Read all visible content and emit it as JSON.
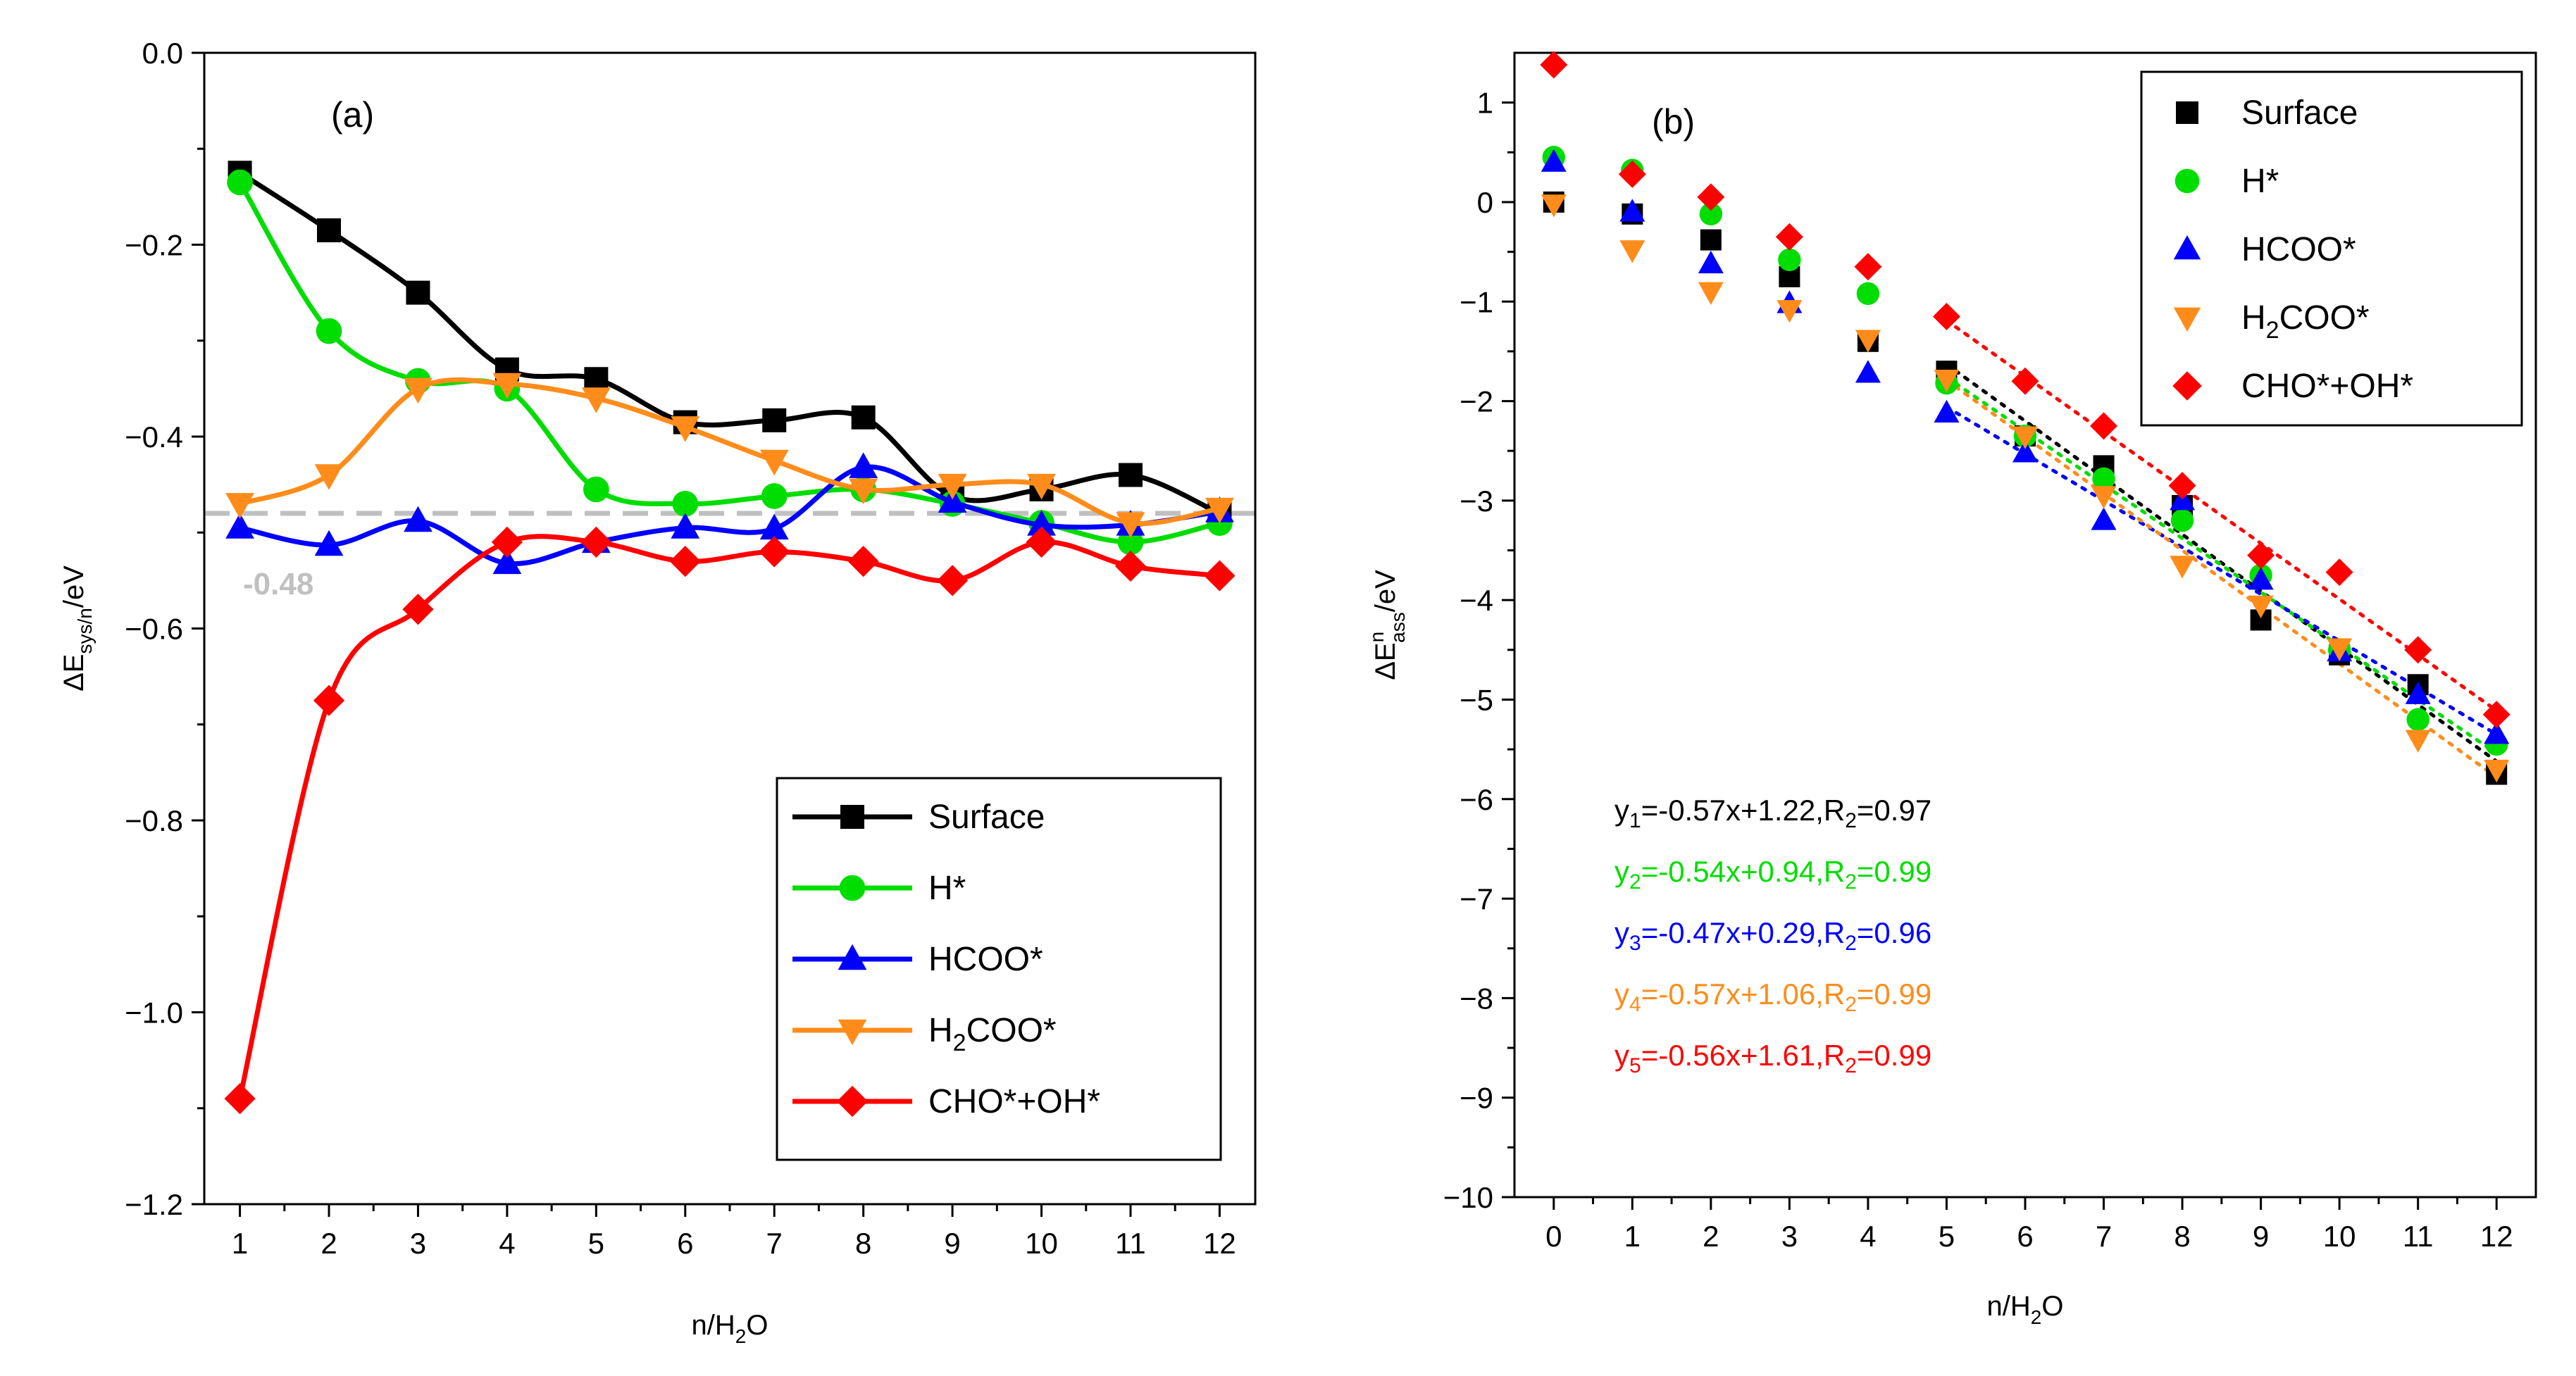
{
  "colors": {
    "surface": "#000000",
    "h": "#00dd00",
    "hcoo": "#0000ff",
    "h2coo": "#ff8c1a",
    "choh": "#ff0000",
    "refline": "#c0c0c0",
    "axis": "#000000"
  },
  "chart_data": [
    {
      "panel": "(a)",
      "type": "line",
      "xlabel": {
        "base": "n/H",
        "sub": "2",
        "tail": "O"
      },
      "ylabel": {
        "base": "ΔE",
        "sub": "sys/n",
        "tail": "/eV"
      },
      "xlim": [
        0.6,
        12.4
      ],
      "ylim": [
        -1.2,
        0.0
      ],
      "xticks": [
        1,
        2,
        3,
        4,
        5,
        6,
        7,
        8,
        9,
        10,
        11,
        12
      ],
      "yticks": [
        0.0,
        -0.2,
        -0.4,
        -0.6,
        -0.8,
        -1.0,
        -1.2
      ],
      "ytick_labels": [
        "0.0",
        "−0.2",
        "−0.4",
        "−0.6",
        "−0.8",
        "−1.0",
        "−1.2"
      ],
      "ref_line": {
        "y": -0.48,
        "label": "-0.48"
      },
      "legend_position": "bottom-right",
      "x": [
        1,
        2,
        3,
        4,
        5,
        6,
        7,
        8,
        9,
        10,
        11,
        12
      ],
      "series": [
        {
          "key": "surface",
          "name": "Surface",
          "marker": "square",
          "values": [
            -0.125,
            -0.185,
            -0.25,
            -0.33,
            -0.34,
            -0.385,
            -0.383,
            -0.38,
            -0.462,
            -0.455,
            -0.44,
            -0.48
          ]
        },
        {
          "key": "h",
          "name": "H*",
          "marker": "circle",
          "values": [
            -0.135,
            -0.29,
            -0.342,
            -0.35,
            -0.455,
            -0.47,
            -0.462,
            -0.455,
            -0.47,
            -0.49,
            -0.51,
            -0.49
          ]
        },
        {
          "key": "hcoo",
          "name": "HCOO*",
          "marker": "triangle-up",
          "values": [
            -0.495,
            -0.513,
            -0.488,
            -0.532,
            -0.51,
            -0.495,
            -0.496,
            -0.432,
            -0.468,
            -0.492,
            -0.492,
            -0.478
          ]
        },
        {
          "key": "h2coo",
          "name": "H2COO*",
          "label_base": "H",
          "label_sub": "2",
          "label_tail": "COO*",
          "marker": "triangle-down",
          "values": [
            -0.47,
            -0.44,
            -0.35,
            -0.345,
            -0.36,
            -0.39,
            -0.425,
            -0.455,
            -0.45,
            -0.45,
            -0.49,
            -0.475
          ]
        },
        {
          "key": "choh",
          "name": "CHO*+OH*",
          "marker": "diamond",
          "values": [
            -1.09,
            -0.675,
            -0.58,
            -0.51,
            -0.51,
            -0.53,
            -0.52,
            -0.53,
            -0.55,
            -0.51,
            -0.535,
            -0.545
          ]
        }
      ]
    },
    {
      "panel": "(b)",
      "type": "scatter",
      "xlabel": {
        "base": "n/H",
        "sub": "2",
        "tail": "O"
      },
      "ylabel": {
        "base": "ΔE",
        "sup": "n",
        "sub": "ass",
        "tail": "/eV"
      },
      "xlim": [
        -0.5,
        12.5
      ],
      "ylim": [
        -10,
        1.5
      ],
      "xticks": [
        0,
        1,
        2,
        3,
        4,
        5,
        6,
        7,
        8,
        9,
        10,
        11,
        12
      ],
      "yticks": [
        1,
        0,
        -1,
        -2,
        -3,
        -4,
        -5,
        -6,
        -7,
        -8,
        -9,
        -10
      ],
      "ytick_labels": [
        "1",
        "0",
        "−1",
        "−2",
        "−3",
        "−4",
        "−5",
        "−6",
        "−7",
        "−8",
        "−9",
        "−10"
      ],
      "legend_position": "top-right",
      "fit_range": [
        5,
        12
      ],
      "x": [
        0,
        1,
        2,
        3,
        4,
        5,
        6,
        7,
        8,
        9,
        10,
        11,
        12
      ],
      "series": [
        {
          "key": "surface",
          "name": "Surface",
          "marker": "square",
          "values": [
            0.0,
            -0.12,
            -0.38,
            -0.75,
            -1.4,
            -1.7,
            -2.35,
            -2.65,
            -3.05,
            -4.2,
            -4.55,
            -4.85,
            -5.75
          ],
          "fit": {
            "slope": -0.57,
            "intercept": 1.22,
            "label_pre": "y",
            "label_sub": "1",
            "label_mid": "=-0.57x+1.22,R",
            "label_sub2": "2",
            "label_end": "=0.97"
          }
        },
        {
          "key": "h",
          "name": "H*",
          "marker": "circle",
          "values": [
            0.45,
            0.32,
            -0.12,
            -0.58,
            -0.92,
            -1.82,
            -2.35,
            -2.78,
            -3.2,
            -3.75,
            -4.5,
            -5.2,
            -5.45
          ],
          "fit": {
            "slope": -0.54,
            "intercept": 0.94,
            "label_pre": "y",
            "label_sub": "2",
            "label_mid": "=-0.54x+0.94,R",
            "label_sub2": "2",
            "label_end": "=0.99"
          }
        },
        {
          "key": "hcoo",
          "name": "HCOO*",
          "marker": "triangle-up",
          "values": [
            0.4,
            -0.1,
            -0.62,
            -1.02,
            -1.72,
            -2.12,
            -2.52,
            -3.2,
            -3.0,
            -3.8,
            -4.52,
            -4.95,
            -5.35
          ],
          "fit": {
            "slope": -0.47,
            "intercept": 0.29,
            "label_pre": "y",
            "label_sub": "3",
            "label_mid": "=-0.47x+0.29,R",
            "label_sub2": "2",
            "label_end": "=0.96"
          }
        },
        {
          "key": "h2coo",
          "name": "H2COO*",
          "label_base": "H",
          "label_sub": "2",
          "label_tail": "COO*",
          "marker": "triangle-down",
          "values": [
            -0.02,
            -0.48,
            -0.9,
            -1.08,
            -1.38,
            -1.78,
            -2.35,
            -2.95,
            -3.65,
            -4.05,
            -4.48,
            -5.4,
            -5.7
          ],
          "fit": {
            "slope": -0.57,
            "intercept": 1.06,
            "label_pre": "y",
            "label_sub": "4",
            "label_mid": "=-0.57x+1.06,R",
            "label_sub2": "2",
            "label_end": "=0.99"
          }
        },
        {
          "key": "choh",
          "name": "CHO*+OH*",
          "marker": "diamond",
          "values": [
            1.38,
            0.28,
            0.05,
            -0.35,
            -0.65,
            -1.15,
            -1.8,
            -2.25,
            -2.85,
            -3.55,
            -3.72,
            -4.5,
            -5.15
          ],
          "fit": {
            "slope": -0.56,
            "intercept": 1.61,
            "label_pre": "y",
            "label_sub": "5",
            "label_mid": "=-0.56x+1.61,R",
            "label_sub2": "2",
            "label_end": "=0.99"
          }
        }
      ]
    }
  ]
}
